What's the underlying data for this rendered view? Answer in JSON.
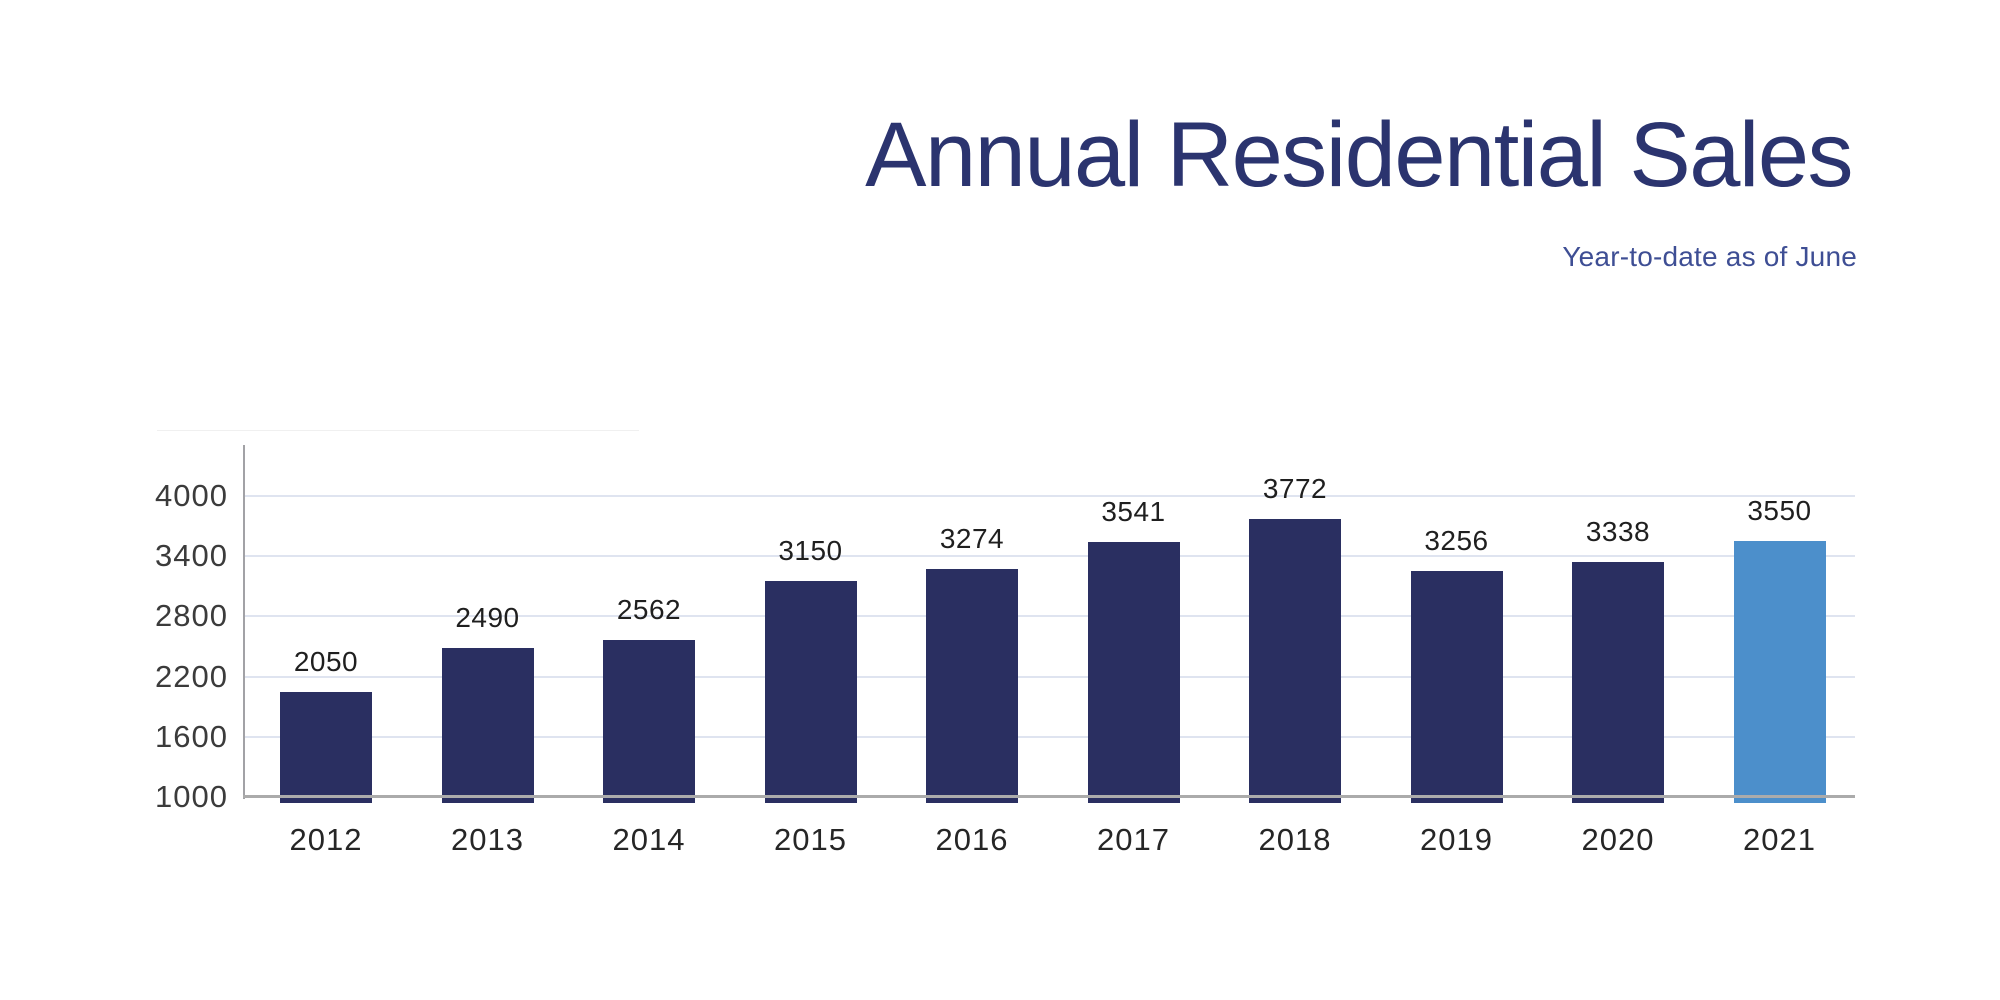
{
  "header": {
    "title": "Annual Residential Sales",
    "subtitle": "Year-to-date as of June",
    "title_color": "#2b346f",
    "subtitle_color": "#3e4e94"
  },
  "chart_data": {
    "type": "bar",
    "title": "Annual Residential Sales",
    "subtitle": "Year-to-date as of June",
    "categories": [
      "2012",
      "2013",
      "2014",
      "2015",
      "2016",
      "2017",
      "2018",
      "2019",
      "2020",
      "2021"
    ],
    "values": [
      2050,
      2490,
      2562,
      3150,
      3274,
      3541,
      3772,
      3256,
      3338,
      3550
    ],
    "value_labels_shown": true,
    "y_ticks": [
      1000,
      1600,
      2200,
      2800,
      3400,
      4000
    ],
    "ylim": [
      1000,
      4000
    ],
    "grid": true,
    "legend_position": "none",
    "colors": {
      "bar": "#2a2f61",
      "highlight_bar": "#4c8fcb",
      "highlight_category": "2021",
      "gridline": "#dfe4f0",
      "y_axis_line": "#a2a2a6",
      "x_axis_line": "#ababab",
      "value_label_text": "#1f1f1f",
      "tick_label_text": "#3b3b3b",
      "x_label_text": "#262626"
    }
  }
}
